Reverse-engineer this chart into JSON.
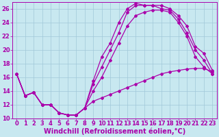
{
  "xlabel": "Windchill (Refroidissement éolien,°C)",
  "background_color": "#c8e8f0",
  "grid_color": "#a0c8d8",
  "line_color": "#aa00aa",
  "xlim": [
    -0.5,
    23.5
  ],
  "ylim": [
    10,
    27
  ],
  "xticks": [
    0,
    1,
    2,
    3,
    4,
    5,
    6,
    7,
    8,
    9,
    10,
    11,
    12,
    13,
    14,
    15,
    16,
    17,
    18,
    19,
    20,
    21,
    22,
    23
  ],
  "yticks": [
    10,
    12,
    14,
    16,
    18,
    20,
    22,
    24,
    26
  ],
  "lines": [
    [
      16.5,
      13.3,
      13.8,
      12.0,
      12.0,
      10.8,
      10.5,
      10.5,
      11.5,
      15.5,
      19.0,
      21.0,
      24.0,
      26.0,
      26.8,
      26.5,
      26.5,
      26.5,
      26.0,
      25.0,
      23.5,
      20.5,
      19.5,
      17.0
    ],
    [
      16.5,
      13.3,
      13.8,
      12.0,
      12.0,
      10.8,
      10.5,
      10.5,
      11.5,
      15.0,
      17.5,
      20.0,
      22.5,
      25.5,
      26.5,
      26.5,
      26.5,
      26.0,
      25.8,
      24.5,
      22.5,
      20.0,
      18.5,
      16.5
    ],
    [
      16.5,
      13.3,
      13.8,
      12.0,
      12.0,
      10.8,
      10.5,
      10.5,
      11.5,
      14.0,
      16.0,
      18.5,
      21.0,
      23.5,
      25.0,
      25.5,
      25.8,
      25.8,
      25.5,
      24.0,
      22.0,
      19.0,
      17.5,
      16.5
    ],
    [
      16.5,
      13.3,
      13.8,
      12.0,
      12.0,
      10.8,
      10.5,
      10.5,
      11.5,
      12.5,
      13.0,
      13.5,
      14.0,
      14.5,
      15.0,
      15.5,
      16.0,
      16.5,
      16.8,
      17.0,
      17.2,
      17.3,
      17.3,
      16.8
    ]
  ],
  "fontsize_tick": 6,
  "fontsize_label": 7,
  "figsize": [
    3.2,
    2.0
  ],
  "dpi": 100
}
